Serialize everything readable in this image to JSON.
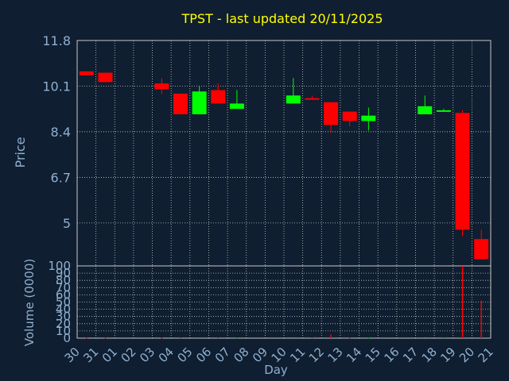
{
  "chart_data": [
    {
      "type": "candlestick",
      "title": "TPST - last updated 20/11/2025",
      "ylabel": "Price",
      "ylim": [
        3.4,
        11.8
      ],
      "yticks": [
        "11.8",
        "10.1",
        "8.4",
        "6.7",
        "5"
      ],
      "ytick_values": [
        11.8,
        10.1,
        8.4,
        6.7,
        5.0
      ],
      "candles": [
        {
          "day": "30",
          "open": 10.65,
          "close": 10.5,
          "high": 10.65,
          "low": 10.5
        },
        {
          "day": "31",
          "open": 10.6,
          "close": 10.25,
          "high": 10.6,
          "low": 10.25
        },
        {
          "day": "03",
          "open": 10.2,
          "close": 9.98,
          "high": 10.4,
          "low": 9.8
        },
        {
          "day": "04",
          "open": 9.82,
          "close": 9.05,
          "high": 9.82,
          "low": 9.05
        },
        {
          "day": "05",
          "open": 9.05,
          "close": 9.9,
          "high": 10.1,
          "low": 9.05
        },
        {
          "day": "06",
          "open": 9.95,
          "close": 9.45,
          "high": 10.2,
          "low": 9.45
        },
        {
          "day": "07",
          "open": 9.25,
          "close": 9.45,
          "high": 9.95,
          "low": 9.25
        },
        {
          "day": "10",
          "open": 9.45,
          "close": 9.75,
          "high": 10.4,
          "low": 9.45
        },
        {
          "day": "11",
          "open": 9.65,
          "close": 9.6,
          "high": 9.75,
          "low": 9.6
        },
        {
          "day": "12",
          "open": 9.5,
          "close": 8.65,
          "high": 9.5,
          "low": 8.35
        },
        {
          "day": "13",
          "open": 9.15,
          "close": 8.8,
          "high": 9.15,
          "low": 8.6
        },
        {
          "day": "14",
          "open": 8.8,
          "close": 9.0,
          "high": 9.3,
          "low": 8.45
        },
        {
          "day": "17",
          "open": 9.05,
          "close": 9.35,
          "high": 9.75,
          "low": 9.05
        },
        {
          "day": "18",
          "open": 9.15,
          "close": 9.2,
          "high": 9.25,
          "low": 9.15
        },
        {
          "day": "19",
          "open": 9.1,
          "close": 4.75,
          "high": 9.2,
          "low": 4.5
        },
        {
          "day": "20",
          "open": 4.4,
          "close": 3.65,
          "high": 4.75,
          "low": 3.65
        }
      ],
      "up_color": "#00ff00",
      "down_color": "#ff0000",
      "grid": true
    },
    {
      "type": "bar",
      "ylabel": "Volume (0000)",
      "xlabel": "Day",
      "ylim": [
        0,
        100
      ],
      "yticks": [
        "100",
        "90",
        "80",
        "70",
        "60",
        "50",
        "40",
        "30",
        "20",
        "10",
        "0"
      ],
      "ytick_values": [
        100,
        90,
        80,
        70,
        60,
        50,
        40,
        30,
        20,
        10,
        0
      ],
      "categories": [
        "30",
        "31",
        "01",
        "02",
        "03",
        "04",
        "05",
        "06",
        "07",
        "08",
        "09",
        "10",
        "11",
        "12",
        "13",
        "14",
        "15",
        "16",
        "17",
        "18",
        "19",
        "20",
        "21"
      ],
      "values": [
        0.3,
        0.3,
        0,
        0,
        0.5,
        1.0,
        0.8,
        1.0,
        0.5,
        0,
        0,
        1.0,
        1.0,
        5.0,
        0.8,
        0.5,
        0,
        0,
        1.0,
        0.4,
        100,
        52,
        0
      ],
      "bar_colors": [
        "#ff0000",
        "#ff0000",
        "#ff0000",
        "#ff0000",
        "#ff0000",
        "#ff0000",
        "#00ff00",
        "#ff0000",
        "#00ff00",
        "#ff0000",
        "#ff0000",
        "#00ff00",
        "#ff0000",
        "#ff0000",
        "#ff0000",
        "#00ff00",
        "#ff0000",
        "#ff0000",
        "#00ff00",
        "#00ff00",
        "#ff0000",
        "#ff0000",
        "#ff0000"
      ],
      "grid": true
    }
  ],
  "colors": {
    "background": "#0f1e30",
    "title": "#ffff00",
    "axis_text": "#8fb0d0",
    "grid": "#c8c8c8"
  }
}
